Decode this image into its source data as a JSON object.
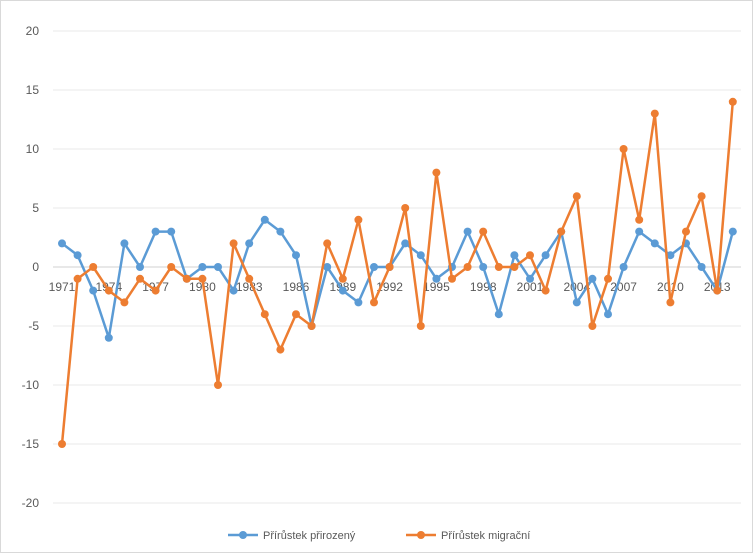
{
  "chart_data": {
    "type": "line",
    "title": "",
    "xlabel": "",
    "ylabel": "",
    "ylim": [
      -20,
      20
    ],
    "yticks": [
      "20",
      "15",
      "10",
      "5",
      "0",
      "-5",
      "-10",
      "-15",
      "-20"
    ],
    "ytick_values": [
      20,
      15,
      10,
      5,
      0,
      -5,
      -10,
      -15,
      -20
    ],
    "x": [
      1971,
      1972,
      1973,
      1974,
      1975,
      1976,
      1977,
      1978,
      1979,
      1980,
      1981,
      1982,
      1983,
      1984,
      1985,
      1986,
      1987,
      1988,
      1989,
      1990,
      1991,
      1992,
      1993,
      1994,
      1995,
      1996,
      1997,
      1998,
      1999,
      2000,
      2001,
      2002,
      2003,
      2004,
      2005,
      2006,
      2007,
      2008,
      2009,
      2010,
      2011,
      2012,
      2013,
      2014
    ],
    "xtick_labels": [
      "1971",
      "1974",
      "1977",
      "1980",
      "1983",
      "1986",
      "1989",
      "1992",
      "1995",
      "1998",
      "2001",
      "2004",
      "2007",
      "2010",
      "2013"
    ],
    "xtick_values": [
      1971,
      1974,
      1977,
      1980,
      1983,
      1986,
      1989,
      1992,
      1995,
      1998,
      2001,
      2004,
      2007,
      2010,
      2013
    ],
    "gridlines": true,
    "legend_position": "bottom",
    "series": [
      {
        "name": "Přírůstek přirozený",
        "color": "#5b9bd5",
        "values": [
          2,
          1,
          -2,
          -6,
          2,
          0,
          3,
          3,
          -1,
          0,
          0,
          -2,
          2,
          4,
          3,
          1,
          -5,
          0,
          -2,
          -3,
          0,
          0,
          2,
          1,
          -1,
          0,
          3,
          0,
          -4,
          1,
          -1,
          1,
          3,
          -3,
          -1,
          -4,
          0,
          3,
          2,
          1,
          2,
          0,
          -2,
          3
        ]
      },
      {
        "name": "Přírůstek migrační",
        "color": "#ed7d31",
        "values": [
          -15,
          -1,
          0,
          -2,
          -3,
          -1,
          -2,
          0,
          -1,
          -1,
          -10,
          2,
          -1,
          -4,
          -7,
          -4,
          -5,
          2,
          -1,
          4,
          -3,
          0,
          5,
          -5,
          8,
          -1,
          0,
          3,
          0,
          0,
          1,
          -2,
          3,
          6,
          -5,
          -1,
          10,
          4,
          13,
          -3,
          3,
          6,
          -2,
          14
        ]
      }
    ]
  }
}
